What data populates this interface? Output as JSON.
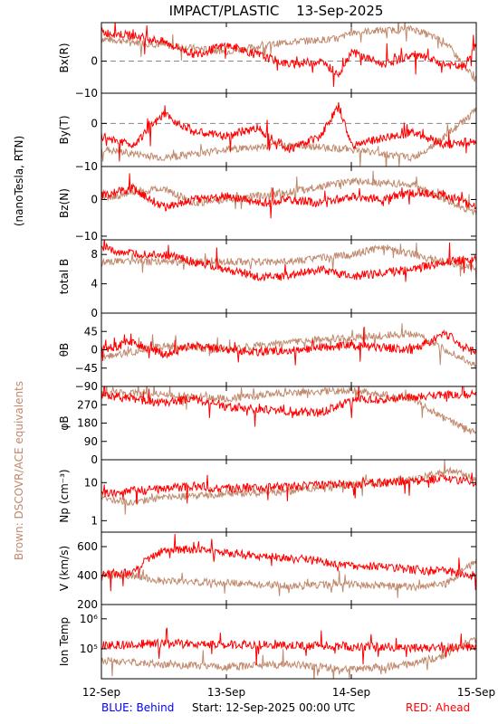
{
  "header": {
    "title": "IMPACT/PLASTIC",
    "date": "13-Sep-2025"
  },
  "side_labels": {
    "units": "(nanoTesla, RTN)",
    "equivalents": "Brown: DSCOVR/ACE equivalents"
  },
  "footer": {
    "behind": "BLUE: Behind",
    "start": "Start: 12-Sep-2025 00:00 UTC",
    "ahead": "RED: Ahead"
  },
  "colors": {
    "ahead": "#ff0000",
    "behind": "#0000ff",
    "brown": "#c08a6e",
    "axis": "#000000"
  },
  "chart_data": {
    "type": "line",
    "title": "IMPACT/PLASTIC  13-Sep-2025",
    "x_ticks": [
      "12-Sep",
      "13-Sep",
      "14-Sep",
      "15-Sep"
    ],
    "xlim": [
      0,
      3
    ],
    "panels": [
      {
        "id": "bx",
        "ylabel": "Bx(R)",
        "ylim": [
          -10,
          12
        ],
        "ticks": [
          {
            "v": 0,
            "t": "0"
          },
          {
            "v": -10,
            "t": "−10"
          }
        ],
        "zero_line": true,
        "red": [
          [
            0,
            9
          ],
          [
            0.25,
            8
          ],
          [
            0.5,
            6
          ],
          [
            0.75,
            2
          ],
          [
            1,
            5
          ],
          [
            1.25,
            2
          ],
          [
            1.5,
            -1
          ],
          [
            1.75,
            0
          ],
          [
            1.9,
            -4
          ],
          [
            2,
            3
          ],
          [
            2.25,
            -1
          ],
          [
            2.5,
            2
          ],
          [
            2.75,
            -1
          ],
          [
            2.9,
            -2
          ],
          [
            3,
            5
          ]
        ],
        "brown": [
          [
            0,
            7
          ],
          [
            0.5,
            5
          ],
          [
            1,
            3
          ],
          [
            1.5,
            6
          ],
          [
            1.9,
            7
          ],
          [
            2,
            9
          ],
          [
            2.5,
            10
          ],
          [
            2.75,
            6
          ],
          [
            3,
            -6
          ]
        ]
      },
      {
        "id": "by",
        "ylabel": "By(T)",
        "ylim": [
          -10,
          7
        ],
        "ticks": [
          {
            "v": 0,
            "t": "0"
          },
          {
            "v": -10,
            "t": "−10"
          }
        ],
        "zero_line": true,
        "red": [
          [
            0,
            -3
          ],
          [
            0.25,
            -5
          ],
          [
            0.5,
            2
          ],
          [
            0.75,
            -2
          ],
          [
            1,
            -3
          ],
          [
            1.25,
            -1
          ],
          [
            1.5,
            -6
          ],
          [
            1.75,
            -3
          ],
          [
            1.9,
            4
          ],
          [
            2,
            -5
          ],
          [
            2.5,
            -2
          ],
          [
            2.75,
            -5
          ],
          [
            3,
            -4
          ]
        ],
        "brown": [
          [
            0,
            -6
          ],
          [
            0.5,
            -8
          ],
          [
            1,
            -6
          ],
          [
            1.5,
            -5
          ],
          [
            2,
            -6
          ],
          [
            2.5,
            -8
          ],
          [
            2.75,
            -3
          ],
          [
            3,
            3
          ]
        ]
      },
      {
        "id": "bz",
        "ylabel": "Bz(N)",
        "ylim": [
          -11,
          9
        ],
        "ticks": [
          {
            "v": 0,
            "t": "0"
          },
          {
            "v": -10,
            "t": "−10"
          }
        ],
        "zero_line": false,
        "red": [
          [
            0,
            1
          ],
          [
            0.25,
            3
          ],
          [
            0.5,
            -2
          ],
          [
            0.75,
            0
          ],
          [
            1,
            1
          ],
          [
            1.25,
            -1
          ],
          [
            1.5,
            0
          ],
          [
            1.75,
            -1
          ],
          [
            2,
            1
          ],
          [
            2.25,
            0
          ],
          [
            2.5,
            2
          ],
          [
            2.75,
            1
          ],
          [
            3,
            -2
          ]
        ],
        "brown": [
          [
            0,
            0
          ],
          [
            0.25,
            2
          ],
          [
            0.5,
            3
          ],
          [
            0.75,
            -1
          ],
          [
            1,
            0
          ],
          [
            1.5,
            2
          ],
          [
            2,
            5
          ],
          [
            2.5,
            4
          ],
          [
            3,
            -4
          ]
        ]
      },
      {
        "id": "bt",
        "ylabel": "total B",
        "ylim": [
          0,
          10
        ],
        "ticks": [
          {
            "v": 8,
            "t": "8"
          },
          {
            "v": 4,
            "t": "4"
          },
          {
            "v": 0,
            "t": "0"
          }
        ],
        "zero_line": false,
        "red": [
          [
            0,
            9
          ],
          [
            0.25,
            8
          ],
          [
            0.5,
            8
          ],
          [
            0.75,
            7
          ],
          [
            1,
            6
          ],
          [
            1.25,
            5
          ],
          [
            1.5,
            5
          ],
          [
            1.75,
            6
          ],
          [
            2,
            5
          ],
          [
            2.5,
            6
          ],
          [
            2.75,
            7
          ],
          [
            3,
            7.5
          ]
        ],
        "brown": [
          [
            0,
            7
          ],
          [
            0.5,
            7
          ],
          [
            1,
            7
          ],
          [
            1.5,
            7
          ],
          [
            2,
            8
          ],
          [
            2.25,
            9
          ],
          [
            2.5,
            8
          ],
          [
            3,
            6
          ]
        ]
      },
      {
        "id": "theta",
        "ylabel": "θB",
        "ylim": [
          -90,
          90
        ],
        "ticks": [
          {
            "v": 45,
            "t": "45"
          },
          {
            "v": 0,
            "t": "0"
          },
          {
            "v": -45,
            "t": "−45"
          },
          {
            "v": -90,
            "t": "−90"
          }
        ],
        "zero_line": false,
        "red": [
          [
            0,
            0
          ],
          [
            0.25,
            20
          ],
          [
            0.5,
            -10
          ],
          [
            0.75,
            10
          ],
          [
            1,
            0
          ],
          [
            1.25,
            -5
          ],
          [
            1.5,
            0
          ],
          [
            1.75,
            5
          ],
          [
            2,
            10
          ],
          [
            2.5,
            0
          ],
          [
            2.75,
            40
          ],
          [
            3,
            -10
          ]
        ],
        "brown": [
          [
            0,
            -20
          ],
          [
            0.5,
            10
          ],
          [
            1,
            0
          ],
          [
            1.5,
            20
          ],
          [
            2,
            30
          ],
          [
            2.5,
            40
          ],
          [
            3,
            -40
          ]
        ]
      },
      {
        "id": "phi",
        "ylabel": "φB",
        "ylim": [
          0,
          360
        ],
        "ticks": [
          {
            "v": 270,
            "t": "270"
          },
          {
            "v": 180,
            "t": "180"
          },
          {
            "v": 90,
            "t": "90"
          },
          {
            "v": 0,
            "t": "0"
          }
        ],
        "zero_line": false,
        "red": [
          [
            0,
            320
          ],
          [
            0.25,
            300
          ],
          [
            0.5,
            280
          ],
          [
            0.75,
            300
          ],
          [
            1,
            260
          ],
          [
            1.25,
            250
          ],
          [
            1.5,
            240
          ],
          [
            1.75,
            230
          ],
          [
            2,
            290
          ],
          [
            2.25,
            300
          ],
          [
            2.5,
            310
          ],
          [
            2.75,
            320
          ],
          [
            3,
            320
          ]
        ],
        "brown": [
          [
            0,
            330
          ],
          [
            0.5,
            320
          ],
          [
            1,
            300
          ],
          [
            1.5,
            330
          ],
          [
            2,
            340
          ],
          [
            2.5,
            300
          ],
          [
            2.75,
            200
          ],
          [
            3,
            130
          ]
        ]
      },
      {
        "id": "np",
        "ylabel": "Np (cm⁻³)",
        "ylim": [
          0.5,
          40
        ],
        "log": true,
        "ticks": [
          {
            "v": 10,
            "t": "10"
          },
          {
            "v": 1,
            "t": "1"
          }
        ],
        "zero_line": false,
        "red": [
          [
            0,
            5
          ],
          [
            0.25,
            6
          ],
          [
            0.5,
            7
          ],
          [
            0.75,
            8
          ],
          [
            1,
            7
          ],
          [
            1.5,
            8
          ],
          [
            2,
            9
          ],
          [
            2.5,
            11
          ],
          [
            2.75,
            13
          ],
          [
            3,
            10
          ]
        ],
        "brown": [
          [
            0,
            4
          ],
          [
            0.25,
            3
          ],
          [
            0.5,
            4
          ],
          [
            1,
            5
          ],
          [
            1.5,
            6
          ],
          [
            2,
            9
          ],
          [
            2.5,
            12
          ],
          [
            2.8,
            20
          ],
          [
            3,
            12
          ]
        ]
      },
      {
        "id": "v",
        "ylabel": "V (km/s)",
        "ylim": [
          200,
          700
        ],
        "ticks": [
          {
            "v": 600,
            "t": "600"
          },
          {
            "v": 400,
            "t": "400"
          },
          {
            "v": 200,
            "t": "200"
          }
        ],
        "zero_line": false,
        "red": [
          [
            0,
            410
          ],
          [
            0.25,
            420
          ],
          [
            0.35,
            500
          ],
          [
            0.5,
            580
          ],
          [
            0.75,
            580
          ],
          [
            1,
            560
          ],
          [
            1.25,
            540
          ],
          [
            1.5,
            520
          ],
          [
            1.75,
            500
          ],
          [
            2,
            470
          ],
          [
            2.25,
            460
          ],
          [
            2.5,
            440
          ],
          [
            2.75,
            430
          ],
          [
            3,
            400
          ]
        ],
        "brown": [
          [
            0,
            400
          ],
          [
            0.25,
            400
          ],
          [
            0.5,
            360
          ],
          [
            1,
            350
          ],
          [
            1.5,
            330
          ],
          [
            2,
            340
          ],
          [
            2.5,
            320
          ],
          [
            2.75,
            340
          ],
          [
            3,
            500
          ]
        ]
      },
      {
        "id": "temp",
        "ylabel": "Ion Temp",
        "ylim": [
          10000,
          3000000
        ],
        "log": true,
        "ticks": [
          {
            "v": 1000000,
            "t": "10⁶"
          },
          {
            "v": 100000,
            "t": "10⁵"
          }
        ],
        "zero_line": false,
        "red": [
          [
            0,
            130000
          ],
          [
            0.5,
            150000
          ],
          [
            1,
            140000
          ],
          [
            1.5,
            130000
          ],
          [
            2,
            120000
          ],
          [
            2.5,
            110000
          ],
          [
            2.75,
            100000
          ],
          [
            3,
            130000
          ]
        ],
        "brown": [
          [
            0,
            40000
          ],
          [
            0.5,
            30000
          ],
          [
            1,
            25000
          ],
          [
            1.5,
            30000
          ],
          [
            2,
            20000
          ],
          [
            2.5,
            30000
          ],
          [
            2.75,
            60000
          ],
          [
            3,
            200000
          ]
        ]
      }
    ]
  }
}
